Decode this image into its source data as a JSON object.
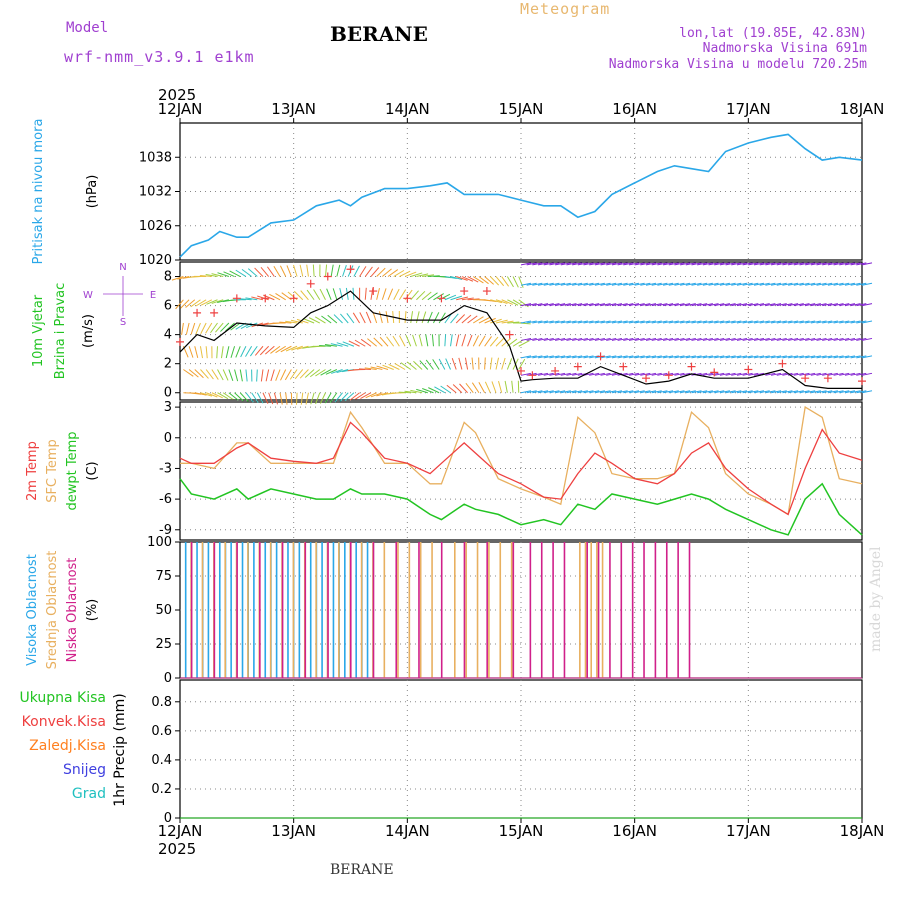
{
  "header": {
    "title": "BERANE",
    "meteogram": "Meteogram",
    "model_label": "Model",
    "model_name": "wrf-nmm_v3.9.1  e1km",
    "lonlat": "lon,lat (19.85E, 42.83N)",
    "elevation": "Nadmorska Visina 691m",
    "elevation_model": "Nadmorska Visina u modelu 720.25m",
    "year_top": "2025",
    "year_bottom": "2025",
    "footer": "BERANE",
    "watermark": "made by Angel"
  },
  "colors": {
    "pressure": "#2aa7e8",
    "temp2m": "#ee4040",
    "sfc_temp": "#e8b060",
    "dewpoint": "#22c422",
    "wind_speed": "#000000",
    "wind_gust_marker": "#ee4040",
    "high_cloud": "#2aa7e8",
    "mid_cloud": "#e8b060",
    "low_cloud": "#d0208a",
    "total_precip": "#22c422",
    "conv_precip": "#ee4040",
    "strat_precip": "#ff8020",
    "snow": "#4040e0",
    "graupel": "#20c0c0",
    "axis_text": "#000000",
    "label_purple": "#a040d0"
  },
  "days": [
    "12JAN",
    "13JAN",
    "14JAN",
    "15JAN",
    "16JAN",
    "17JAN",
    "18JAN"
  ],
  "panels": {
    "pressure": {
      "labels": [
        {
          "text": "Pritisak  na  nivou  mora",
          "color": "#2aa7e8"
        },
        {
          "text": "(hPa)",
          "color": "#000000"
        }
      ]
    },
    "wind": {
      "labels": [
        {
          "text": "10m  Vjetar",
          "color": "#22c422"
        },
        {
          "text": "Brzina  i  Pravac",
          "color": "#22c422"
        },
        {
          "text": "(m/s)",
          "color": "#000000"
        }
      ],
      "compass": [
        "N",
        "W",
        "E",
        "S"
      ]
    },
    "temperature": {
      "labels": [
        {
          "text": "2m  Temp",
          "color": "#ee4040"
        },
        {
          "text": "SFC  Temp",
          "color": "#e8b060"
        },
        {
          "text": "dewpt  Temp",
          "color": "#22c422"
        },
        {
          "text": "(C)",
          "color": "#000000"
        }
      ]
    },
    "cloud": {
      "labels": [
        {
          "text": "Visoka  Oblacnost",
          "color": "#2aa7e8"
        },
        {
          "text": "Srednja  Oblacnost",
          "color": "#e8b060"
        },
        {
          "text": "Niska  Oblacnost",
          "color": "#d0208a"
        },
        {
          "text": "(%)",
          "color": "#000000"
        }
      ]
    },
    "precip": {
      "legend": [
        {
          "text": "Ukupna  Kisa",
          "color": "#22c422"
        },
        {
          "text": "Konvek.Kisa",
          "color": "#ee4040"
        },
        {
          "text": "Zaledj.Kisa",
          "color": "#ff8020"
        },
        {
          "text": "Snijeg",
          "color": "#4040e0"
        },
        {
          "text": "Grad",
          "color": "#20c0c0"
        }
      ],
      "axis_label": "1hr  Precip  (mm)"
    }
  },
  "chart_data": [
    {
      "type": "line",
      "name": "pressure",
      "x_days": [
        0,
        0.1,
        0.25,
        0.35,
        0.5,
        0.6,
        0.8,
        1.0,
        1.2,
        1.4,
        1.5,
        1.6,
        1.8,
        2.0,
        2.2,
        2.35,
        2.5,
        2.6,
        2.8,
        3.0,
        3.2,
        3.35,
        3.5,
        3.65,
        3.8,
        4.0,
        4.2,
        4.35,
        4.5,
        4.65,
        4.8,
        5.0,
        5.2,
        5.35,
        5.5,
        5.65,
        5.8,
        6.0
      ],
      "series": [
        {
          "values": [
            1020.5,
            1022.5,
            1023.5,
            1025,
            1024,
            1024,
            1026.5,
            1027,
            1029.5,
            1030.5,
            1029.5,
            1031,
            1032.5,
            1032.5,
            1033,
            1033.5,
            1031.5,
            1031.5,
            1031.5,
            1030.5,
            1029.5,
            1029.5,
            1027.5,
            1028.5,
            1031.5,
            1033.5,
            1035.5,
            1036.5,
            1036,
            1035.5,
            1039,
            1040.5,
            1041.5,
            1042,
            1039.5,
            1037.5,
            1038,
            1037.5
          ]
        }
      ],
      "yticks": [
        1020,
        1026,
        1032,
        1038
      ],
      "ylim": [
        1020,
        1044
      ]
    },
    {
      "type": "line",
      "name": "wind",
      "x_days": [
        0,
        0.15,
        0.3,
        0.5,
        0.75,
        1.0,
        1.15,
        1.3,
        1.5,
        1.7,
        2.0,
        2.3,
        2.5,
        2.7,
        2.9,
        3.0,
        3.1,
        3.3,
        3.5,
        3.7,
        3.9,
        4.1,
        4.3,
        4.5,
        4.7,
        5.0,
        5.3,
        5.5,
        5.7,
        6.0
      ],
      "series": [
        {
          "values": [
            2.8,
            4,
            3.6,
            4.8,
            4.6,
            4.5,
            5.5,
            6,
            7,
            5.5,
            5,
            5,
            6,
            5.5,
            3.2,
            0.8,
            0.9,
            1.0,
            1.0,
            1.8,
            1.2,
            0.6,
            0.8,
            1.3,
            1.0,
            1.0,
            1.6,
            0.5,
            0.3,
            0.3
          ]
        },
        {
          "values": [
            3.5,
            5.5,
            5.5,
            6.5,
            6.5,
            6.5,
            7.5,
            8.0,
            8.5,
            7.0,
            6.5,
            6.5,
            7.0,
            7.0,
            4.0,
            1.5,
            1.2,
            1.5,
            1.8,
            2.5,
            1.8,
            1.0,
            1.2,
            1.8,
            1.4,
            1.6,
            2.0,
            1.0,
            1.0,
            0.8
          ]
        }
      ],
      "yticks": [
        0,
        2,
        4,
        6,
        8
      ],
      "ylim": [
        -0.5,
        9.0
      ]
    },
    {
      "type": "line",
      "name": "temperature",
      "x_days": [
        0,
        0.1,
        0.3,
        0.5,
        0.6,
        0.8,
        1.0,
        1.2,
        1.35,
        1.5,
        1.6,
        1.8,
        2.0,
        2.2,
        2.3,
        2.5,
        2.6,
        2.8,
        3.0,
        3.2,
        3.35,
        3.5,
        3.65,
        3.8,
        4.0,
        4.2,
        4.35,
        4.5,
        4.65,
        4.8,
        5.0,
        5.2,
        5.35,
        5.5,
        5.65,
        5.8,
        6.0
      ],
      "series": [
        {
          "values": [
            -2,
            -2.5,
            -2.5,
            -1,
            -0.5,
            -2,
            -2.3,
            -2.5,
            -2,
            1.5,
            0.5,
            -2,
            -2.5,
            -3.5,
            -2.5,
            -0.5,
            -1.5,
            -3.5,
            -4.5,
            -5.8,
            -6,
            -3.5,
            -1.5,
            -2.5,
            -4,
            -4.5,
            -3.5,
            -1.5,
            -0.5,
            -3,
            -5,
            -6.5,
            -7.5,
            -3,
            0.8,
            -1.5,
            -2.2
          ]
        },
        {
          "values": [
            -2.5,
            -2.5,
            -3,
            -0.5,
            -0.5,
            -2.5,
            -2.5,
            -2.5,
            -2.5,
            2.5,
            1,
            -2.5,
            -2.5,
            -4.5,
            -4.5,
            1.5,
            0.5,
            -4,
            -5,
            -5.8,
            -6.5,
            2,
            0.5,
            -3.5,
            -4,
            -4,
            -3.5,
            2.5,
            1,
            -3.5,
            -5.5,
            -6.5,
            -7.5,
            3,
            2,
            -4,
            -4.5
          ]
        },
        {
          "values": [
            -4,
            -5.5,
            -6,
            -5,
            -6,
            -5,
            -5.5,
            -6,
            -6,
            -5,
            -5.5,
            -5.5,
            -6,
            -7.5,
            -8,
            -6.5,
            -7,
            -7.5,
            -8.5,
            -8,
            -8.5,
            -6.5,
            -7,
            -5.5,
            -6,
            -6.5,
            -6,
            -5.5,
            -6,
            -7,
            -8,
            -9,
            -9.5,
            -6,
            -4.5,
            -7.5,
            -9.5
          ]
        }
      ],
      "yticks": [
        -9,
        -6,
        -3,
        0,
        3
      ],
      "ylim": [
        -10,
        3.5
      ]
    },
    {
      "type": "bar",
      "name": "cloud",
      "yticks": [
        0,
        25,
        50,
        75,
        100
      ],
      "ylim": [
        0,
        100
      ],
      "high_times": [
        0.05,
        0.1,
        0.15,
        0.2,
        0.25,
        0.3,
        0.35,
        0.4,
        0.45,
        0.5,
        0.55,
        0.6,
        0.65,
        0.7,
        0.75,
        0.8,
        0.85,
        0.9,
        0.95,
        1.0,
        1.05,
        1.1,
        1.15,
        1.2,
        1.25,
        1.3,
        1.35,
        1.4,
        1.45,
        1.5,
        1.55,
        1.6,
        1.65,
        1.7
      ],
      "mid_times": [
        0.08,
        0.18,
        0.28,
        0.38,
        0.48,
        0.58,
        0.68,
        0.78,
        0.88,
        0.98,
        1.08,
        1.18,
        1.28,
        1.38,
        1.48,
        1.58,
        1.68,
        1.78,
        1.9,
        2.0,
        2.1,
        2.2,
        2.4,
        2.5,
        2.6,
        2.7,
        2.8,
        2.9,
        3.5,
        3.55,
        3.6,
        3.65,
        3.7
      ],
      "low_times": [
        0.12,
        0.32,
        0.52,
        0.72,
        0.92,
        1.12,
        1.32,
        1.52,
        1.72,
        1.92,
        2.12,
        2.32,
        2.52,
        2.72,
        2.95,
        3.1,
        3.2,
        3.3,
        3.4,
        3.6,
        3.7,
        3.8,
        3.9,
        4.0,
        4.1,
        4.2,
        4.3,
        4.4,
        4.5
      ]
    },
    {
      "type": "bar",
      "name": "precip",
      "yticks": [
        0,
        0.2,
        0.4,
        0.6,
        0.8
      ],
      "ylim": [
        0,
        0.95
      ],
      "series": [
        {
          "values": []
        }
      ]
    }
  ]
}
